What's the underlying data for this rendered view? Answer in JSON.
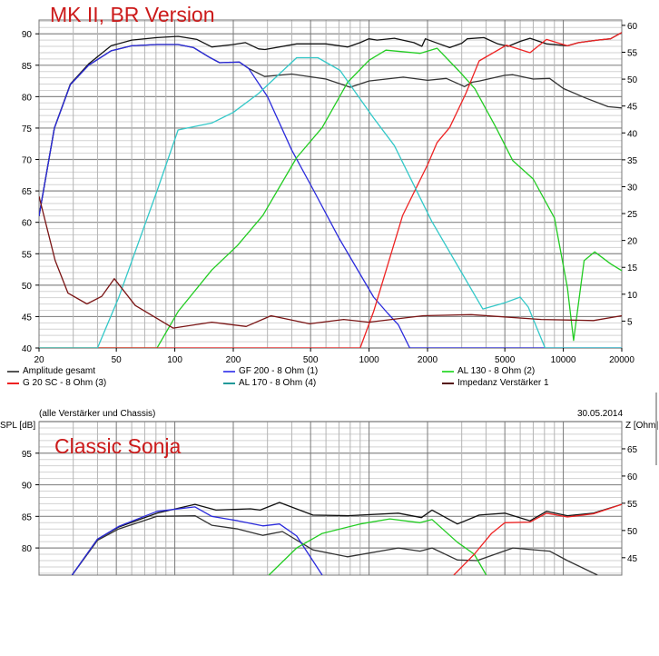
{
  "chart_data": [
    {
      "type": "line",
      "title": "MK II, BR Version",
      "xscale": "log",
      "xlim": [
        20,
        20000
      ],
      "ylim": [
        40,
        92.2
      ],
      "y2lim": [
        0,
        61
      ],
      "xticks": [
        20,
        50,
        100,
        200,
        500,
        1000,
        2000,
        5000,
        10000,
        20000
      ],
      "yticks": [
        40,
        45,
        50,
        55,
        60,
        65,
        70,
        75,
        80,
        85,
        90
      ],
      "y2ticks": [
        5,
        10,
        15,
        20,
        25,
        30,
        35,
        40,
        45,
        50,
        55,
        60
      ],
      "grid": true,
      "legend_position": "bottom",
      "series": [
        {
          "legend": 0,
          "axis": "left",
          "color": "#111111",
          "points": [
            [
              20,
              61
            ],
            [
              24,
              75
            ],
            [
              29,
              82
            ],
            [
              36,
              85.2
            ],
            [
              47,
              88.1
            ],
            [
              60,
              89
            ],
            [
              81,
              89.4
            ],
            [
              104,
              89.6
            ],
            [
              130,
              89.1
            ],
            [
              155,
              87.9
            ],
            [
              200,
              88.3
            ],
            [
              231,
              88.6
            ],
            [
              270,
              87.6
            ],
            [
              291,
              87.5
            ],
            [
              424,
              88.4
            ],
            [
              600,
              88.4
            ],
            [
              776,
              87.9
            ],
            [
              900,
              88.6
            ],
            [
              997,
              89.2
            ],
            [
              1100,
              89
            ],
            [
              1350,
              89.3
            ],
            [
              1700,
              88.6
            ],
            [
              1870,
              88
            ],
            [
              1950,
              89.2
            ],
            [
              2300,
              88.4
            ],
            [
              2600,
              87.8
            ],
            [
              3000,
              88.5
            ],
            [
              3200,
              89.2
            ],
            [
              3900,
              89.4
            ],
            [
              4600,
              88.4
            ],
            [
              5200,
              88
            ],
            [
              6000,
              88.8
            ],
            [
              6740,
              89.3
            ],
            [
              8200,
              88.4
            ],
            [
              10500,
              88.1
            ],
            [
              12000,
              88.6
            ],
            [
              15000,
              89
            ],
            [
              17500,
              89.2
            ],
            [
              20000,
              90.2
            ]
          ]
        },
        {
          "legend": null,
          "axis": "left",
          "color": "#333333",
          "points": [
            [
              20,
              61
            ],
            [
              24,
              75
            ],
            [
              29,
              81.9
            ],
            [
              36,
              85
            ],
            [
              47,
              87.3
            ],
            [
              60,
              88.1
            ],
            [
              81,
              88.3
            ],
            [
              104,
              88.3
            ],
            [
              125,
              87.8
            ],
            [
              150,
              86.3
            ],
            [
              170,
              85.4
            ],
            [
              215,
              85.5
            ],
            [
              240,
              84.5
            ],
            [
              290,
              83.2
            ],
            [
              400,
              83.6
            ],
            [
              600,
              82.8
            ],
            [
              800,
              81.5
            ],
            [
              1000,
              82.5
            ],
            [
              1500,
              83.1
            ],
            [
              2000,
              82.6
            ],
            [
              2500,
              82.9
            ],
            [
              3100,
              81.6
            ],
            [
              3400,
              82.3
            ],
            [
              3700,
              82.5
            ],
            [
              5000,
              83.4
            ],
            [
              5500,
              83.5
            ],
            [
              7000,
              82.8
            ],
            [
              8500,
              82.9
            ],
            [
              10000,
              81.3
            ],
            [
              13000,
              79.8
            ],
            [
              17000,
              78.4
            ],
            [
              20000,
              78.2
            ]
          ]
        },
        {
          "legend": 1,
          "axis": "left",
          "color": "#2a2adc",
          "points": [
            [
              20,
              61
            ],
            [
              24,
              75
            ],
            [
              29,
              81.9
            ],
            [
              36,
              85
            ],
            [
              47,
              87.3
            ],
            [
              60,
              88.1
            ],
            [
              81,
              88.3
            ],
            [
              104,
              88.3
            ],
            [
              125,
              87.8
            ],
            [
              150,
              86.3
            ],
            [
              170,
              85.4
            ],
            [
              215,
              85.5
            ],
            [
              240,
              84.5
            ],
            [
              300,
              80
            ],
            [
              400,
              71.5
            ],
            [
              514,
              65.3
            ],
            [
              700,
              57.5
            ],
            [
              1055,
              48.1
            ],
            [
              1250,
              45.5
            ],
            [
              1415,
              43.7
            ],
            [
              1620,
              40
            ],
            [
              20000,
              40
            ]
          ]
        },
        {
          "legend": 2,
          "axis": "left",
          "color": "#22cc22",
          "points": [
            [
              20,
              40
            ],
            [
              81,
              40
            ],
            [
              104,
              45.8
            ],
            [
              155,
              52.4
            ],
            [
              210,
              56.3
            ],
            [
              284,
              61.1
            ],
            [
              424,
              70.3
            ],
            [
              574,
              75.1
            ],
            [
              776,
              82.3
            ],
            [
              1000,
              85.8
            ],
            [
              1220,
              87.4
            ],
            [
              1830,
              86.9
            ],
            [
              2240,
              87.7
            ],
            [
              2900,
              84.1
            ],
            [
              3500,
              81.3
            ],
            [
              4500,
              75.1
            ],
            [
              5500,
              69.8
            ],
            [
              7000,
              66.9
            ],
            [
              9000,
              60.7
            ],
            [
              10500,
              49.6
            ],
            [
              11300,
              41.2
            ],
            [
              12800,
              53.9
            ],
            [
              14500,
              55.3
            ],
            [
              17500,
              53.4
            ],
            [
              20000,
              52.3
            ]
          ]
        },
        {
          "legend": 3,
          "axis": "left",
          "color": "#ee2222",
          "points": [
            [
              20,
              40
            ],
            [
              900,
              40
            ],
            [
              1055,
              45.8
            ],
            [
              1490,
              61.1
            ],
            [
              2010,
              69.3
            ],
            [
              2240,
              72.7
            ],
            [
              2600,
              75.1
            ],
            [
              3150,
              80.5
            ],
            [
              3690,
              85.7
            ],
            [
              5100,
              88.2
            ],
            [
              6740,
              87
            ],
            [
              8200,
              89.1
            ],
            [
              10500,
              88.1
            ],
            [
              12000,
              88.6
            ],
            [
              15000,
              89
            ],
            [
              17500,
              89.2
            ],
            [
              20000,
              90.2
            ]
          ]
        },
        {
          "legend": 4,
          "axis": "left",
          "color": "#33c8c8",
          "points": [
            [
              20,
              40
            ],
            [
              40,
              40
            ],
            [
              51.4,
              48
            ],
            [
              81,
              65
            ],
            [
              104,
              74.7
            ],
            [
              155,
              75.8
            ],
            [
              200,
              77.5
            ],
            [
              270,
              80.5
            ],
            [
              424,
              86.2
            ],
            [
              545,
              86.2
            ],
            [
              707,
              84.2
            ],
            [
              1055,
              76.6
            ],
            [
              1350,
              72.2
            ],
            [
              2100,
              60.2
            ],
            [
              3850,
              46.2
            ],
            [
              5000,
              47.2
            ],
            [
              6000,
              48.1
            ],
            [
              6600,
              46.5
            ],
            [
              8060,
              40
            ],
            [
              20000,
              40
            ]
          ]
        },
        {
          "legend": 5,
          "axis": "right",
          "color": "#7a1414",
          "points": [
            [
              20,
              28.2
            ],
            [
              24.2,
              16.3
            ],
            [
              28.2,
              10.2
            ],
            [
              35.3,
              8.2
            ],
            [
              42,
              9.6
            ],
            [
              48.8,
              12.9
            ],
            [
              62.6,
              7.9
            ],
            [
              98,
              3.7
            ],
            [
              155,
              4.8
            ],
            [
              233,
              4.0
            ],
            [
              313,
              6.0
            ],
            [
              494,
              4.5
            ],
            [
              740,
              5.3
            ],
            [
              996,
              4.8
            ],
            [
              1900,
              6.0
            ],
            [
              3360,
              6.2
            ],
            [
              7700,
              5.3
            ],
            [
              14300,
              5.1
            ],
            [
              20000,
              6.0
            ]
          ]
        }
      ]
    },
    {
      "type": "line",
      "title": "Classic Sonja",
      "subtitle": "(alle Verstärker und Chassis)",
      "date": "30.05.2014",
      "ylabel": "SPL [dB]",
      "y2label": "Z [Ohm]",
      "xscale": "log",
      "xlim": [
        20,
        20000
      ],
      "ylim": [
        75.7,
        100
      ],
      "y2lim": [
        41.8,
        70
      ],
      "yticks": [
        80,
        85,
        90,
        95
      ],
      "y2ticks": [
        45,
        50,
        55,
        60,
        65
      ],
      "grid": true,
      "series": [
        {
          "legend": 0,
          "axis": "left",
          "color": "#111111",
          "points": [
            [
              29.6,
              75.7
            ],
            [
              40,
              81.4
            ],
            [
              51.4,
              83.3
            ],
            [
              81,
              85.5
            ],
            [
              127,
              86.9
            ],
            [
              163,
              86
            ],
            [
              245,
              86.2
            ],
            [
              275,
              86
            ],
            [
              346,
              87.2
            ],
            [
              514,
              85.2
            ],
            [
              776,
              85.1
            ],
            [
              1415,
              85.5
            ],
            [
              1860,
              84.8
            ],
            [
              2110,
              86
            ],
            [
              2850,
              83.8
            ],
            [
              3690,
              85.2
            ],
            [
              5000,
              85.5
            ],
            [
              6740,
              84.3
            ],
            [
              8200,
              85.8
            ],
            [
              10500,
              85.1
            ],
            [
              14300,
              85.5
            ],
            [
              20000,
              86.9
            ]
          ]
        },
        {
          "legend": null,
          "axis": "left",
          "color": "#333333",
          "points": [
            [
              29.6,
              75.7
            ],
            [
              40,
              81.2
            ],
            [
              51.4,
              83
            ],
            [
              81,
              85
            ],
            [
              127,
              85.1
            ],
            [
              155,
              83.6
            ],
            [
              211,
              83
            ],
            [
              284,
              82
            ],
            [
              358,
              82.6
            ],
            [
              514,
              79.7
            ],
            [
              776,
              78.6
            ],
            [
              1415,
              80
            ],
            [
              1830,
              79.5
            ],
            [
              2110,
              80
            ],
            [
              2850,
              78.1
            ],
            [
              3600,
              78
            ],
            [
              5500,
              80
            ],
            [
              8500,
              79.5
            ],
            [
              10500,
              78
            ],
            [
              15000,
              75.7
            ]
          ]
        },
        {
          "legend": 1,
          "axis": "left",
          "color": "#2a2adc",
          "points": [
            [
              29.6,
              75.7
            ],
            [
              40,
              81.4
            ],
            [
              51.4,
              83.4
            ],
            [
              81,
              85.8
            ],
            [
              127,
              86.5
            ],
            [
              155,
              85
            ],
            [
              211,
              84.3
            ],
            [
              284,
              83.5
            ],
            [
              346,
              83.8
            ],
            [
              424,
              81.9
            ],
            [
              574,
              75.7
            ]
          ]
        },
        {
          "legend": 2,
          "axis": "left",
          "color": "#22cc22",
          "points": [
            [
              305,
              75.7
            ],
            [
              424,
              80
            ],
            [
              574,
              82.3
            ],
            [
              900,
              83.8
            ],
            [
              1280,
              84.6
            ],
            [
              1830,
              84
            ],
            [
              2110,
              84.5
            ],
            [
              2850,
              80.9
            ],
            [
              3480,
              79
            ],
            [
              4010,
              75.7
            ]
          ]
        },
        {
          "legend": 3,
          "axis": "left",
          "color": "#ee2222",
          "points": [
            [
              2730,
              75.7
            ],
            [
              3480,
              79
            ],
            [
              4270,
              82.3
            ],
            [
              5000,
              84
            ],
            [
              6740,
              84.1
            ],
            [
              8200,
              85.5
            ],
            [
              10500,
              84.9
            ],
            [
              14300,
              85.4
            ],
            [
              20000,
              86.9
            ]
          ]
        }
      ]
    }
  ],
  "legend": [
    {
      "label": "Amplitude gesamt",
      "color": "#555555"
    },
    {
      "label": "GF 200 - 8 Ohm (1)",
      "color": "#5555ee"
    },
    {
      "label": "AL 130 - 8 Ohm (2)",
      "color": "#44dd44"
    },
    {
      "label": "G 20 SC - 8 Ohm (3)",
      "color": "#ee2222"
    },
    {
      "label": "AL 170 - 8 Ohm (4)",
      "color": "#229999"
    },
    {
      "label": "Impedanz Verstärker 1",
      "color": "#551111"
    }
  ]
}
